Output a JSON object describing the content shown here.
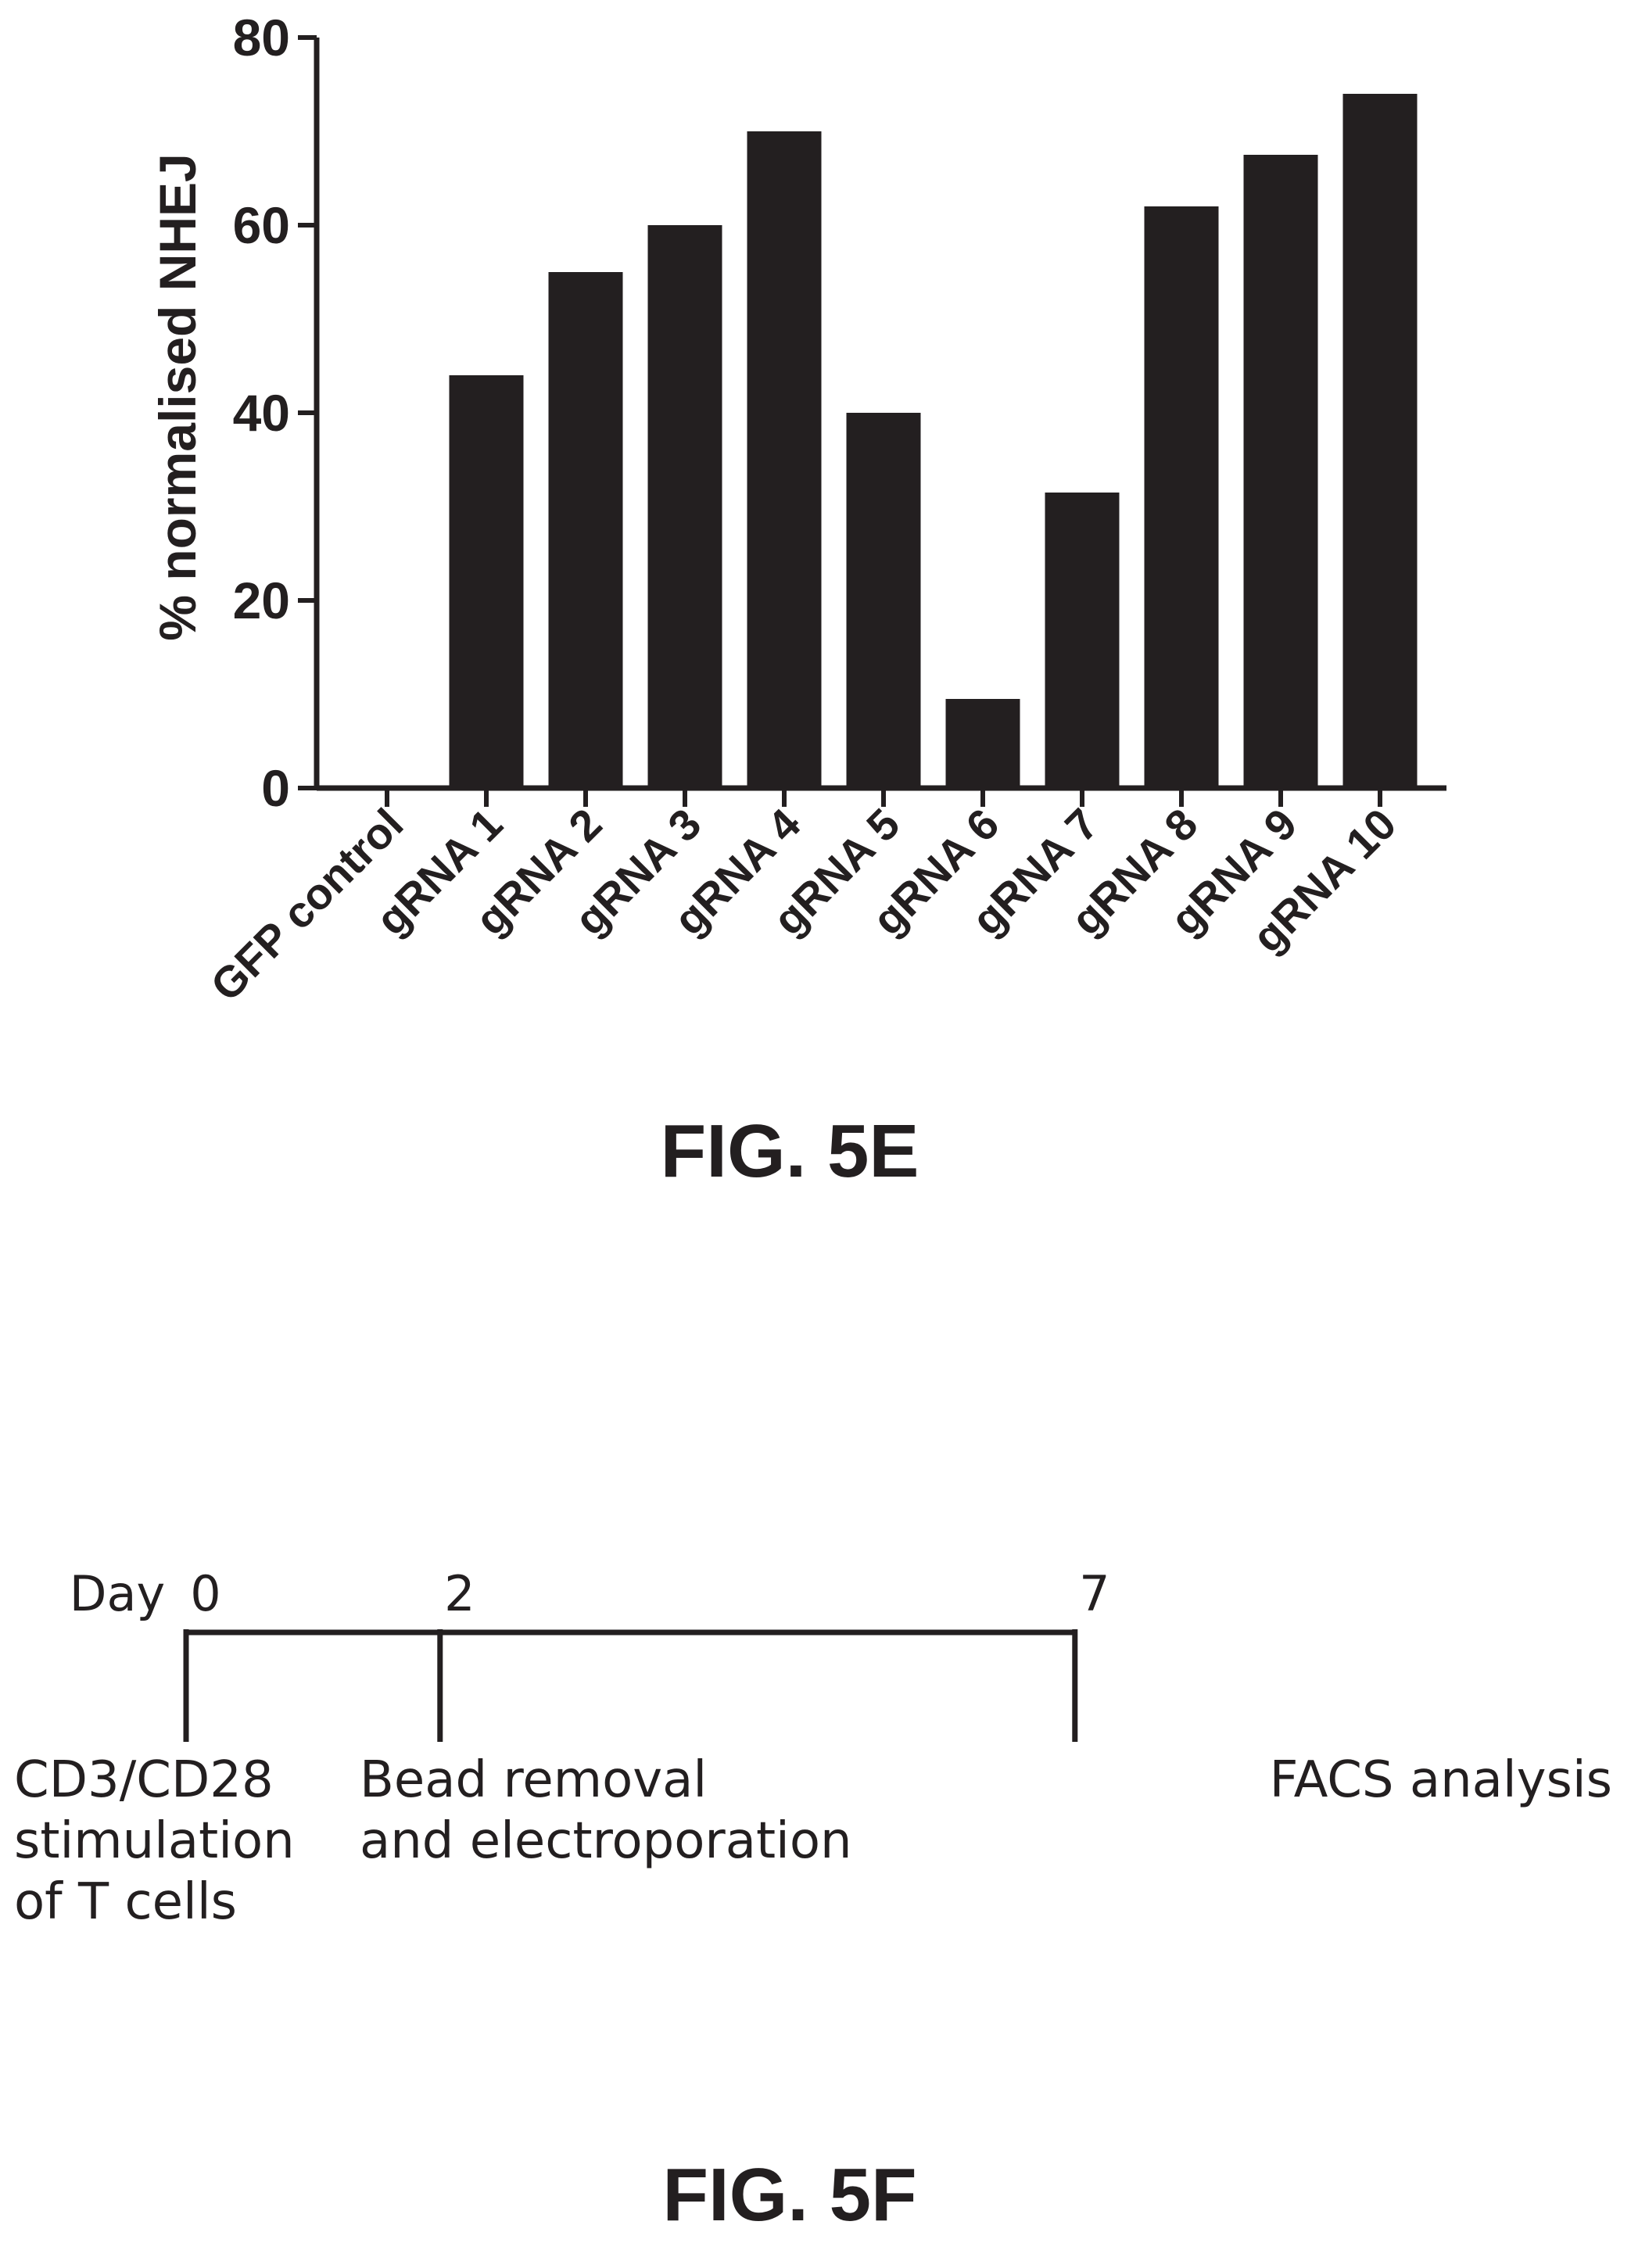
{
  "figures": {
    "top_caption": "FIG. 5E",
    "bottom_caption": "FIG. 5F"
  },
  "chart_data": {
    "type": "bar",
    "ylabel": "% normalised NHEJ",
    "xlabel": "",
    "ylim": [
      0,
      80
    ],
    "yticks": [
      0,
      20,
      40,
      60,
      80
    ],
    "categories": [
      "GFP control",
      "gRNA 1",
      "gRNA 2",
      "gRNA 3",
      "gRNA 4",
      "gRNA 5",
      "gRNA 6",
      "gRNA 7",
      "gRNA 8",
      "gRNA 9",
      "gRNA 10"
    ],
    "values": [
      0,
      44,
      55,
      60,
      70,
      40,
      9.5,
      31.5,
      62,
      67.5,
      74
    ],
    "bar_color": "#231f20",
    "grid": false,
    "legend": "none"
  },
  "timeline": {
    "axis_label": "Day",
    "events": [
      {
        "day": "0",
        "value": 0,
        "lines": [
          "CD3/CD28",
          "stimulation",
          "of T cells"
        ]
      },
      {
        "day": "2",
        "value": 2,
        "lines": [
          "Bead removal",
          "and electroporation"
        ]
      },
      {
        "day": "7",
        "value": 7,
        "lines": [
          "FACS analysis"
        ]
      }
    ]
  }
}
